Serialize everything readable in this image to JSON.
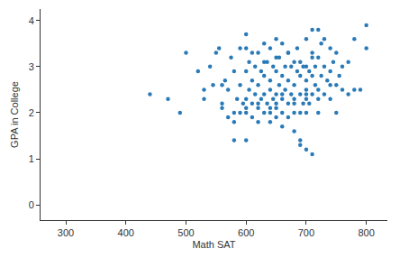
{
  "chart_data": {
    "type": "scatter",
    "x_label": "Math SAT",
    "y_label": "GPA in College",
    "color": "#2a7ab8",
    "marker": "circle",
    "grid": false,
    "xlim": [
      258,
      835
    ],
    "xticks": [
      300,
      400,
      500,
      600,
      700,
      800
    ],
    "ylim": [
      -0.33,
      4.25
    ],
    "yticks": [
      0,
      1,
      2,
      3,
      4
    ],
    "x": [
      440,
      470,
      490,
      500,
      520,
      530,
      530,
      540,
      545,
      550,
      555,
      560,
      560,
      565,
      570,
      570,
      575,
      580,
      580,
      580,
      585,
      590,
      590,
      590,
      595,
      600,
      600,
      600,
      600,
      600,
      605,
      605,
      610,
      610,
      610,
      615,
      615,
      620,
      620,
      620,
      620,
      625,
      625,
      630,
      630,
      630,
      630,
      635,
      635,
      640,
      640,
      640,
      640,
      640,
      645,
      645,
      650,
      650,
      650,
      650,
      650,
      655,
      655,
      660,
      660,
      660,
      660,
      660,
      665,
      665,
      670,
      670,
      670,
      670,
      675,
      675,
      680,
      680,
      680,
      680,
      680,
      685,
      685,
      690,
      690,
      690,
      690,
      690,
      695,
      695,
      700,
      700,
      700,
      700,
      700,
      700,
      705,
      705,
      710,
      710,
      710,
      710,
      710,
      715,
      715,
      720,
      720,
      720,
      720,
      725,
      725,
      730,
      730,
      730,
      735,
      740,
      740,
      740,
      745,
      750,
      750,
      750,
      755,
      760,
      760,
      770,
      770,
      780,
      780,
      790,
      800,
      800,
      560,
      580,
      600,
      620,
      640,
      660,
      680,
      700,
      720,
      740,
      610,
      630,
      650,
      670,
      690,
      710,
      600,
      650,
      700
    ],
    "y": [
      2.4,
      2.3,
      2.0,
      3.3,
      2.9,
      2.5,
      2.3,
      3.0,
      2.6,
      3.3,
      3.4,
      2.6,
      2.1,
      2.7,
      1.9,
      2.5,
      3.2,
      1.4,
      1.8,
      2.9,
      2.3,
      2.0,
      2.6,
      3.4,
      2.2,
      3.7,
      1.4,
      2.0,
      2.9,
      3.4,
      2.5,
      3.1,
      1.9,
      2.2,
      2.7,
      3.0,
      2.4,
      1.8,
      2.1,
      2.6,
      3.3,
      2.9,
      2.3,
      2.0,
      2.4,
      2.8,
      3.5,
      2.2,
      3.1,
      1.8,
      2.0,
      2.5,
      2.7,
      3.4,
      2.3,
      3.0,
      1.9,
      2.1,
      2.4,
      2.9,
      3.6,
      2.6,
      3.2,
      1.7,
      2.0,
      2.3,
      2.8,
      3.5,
      2.5,
      3.0,
      1.9,
      2.2,
      2.7,
      3.3,
      2.4,
      3.0,
      1.6,
      2.0,
      2.3,
      2.6,
      3.1,
      2.9,
      3.4,
      1.4,
      1.3,
      2.0,
      2.4,
      2.8,
      2.2,
      3.0,
      1.2,
      2.0,
      2.4,
      2.7,
      3.0,
      3.6,
      2.2,
      2.9,
      1.1,
      2.4,
      2.8,
      3.3,
      3.8,
      2.6,
      3.0,
      3.8,
      2.0,
      2.5,
      3.2,
      2.8,
      3.5,
      2.4,
      3.0,
      3.6,
      2.7,
      2.3,
      2.9,
      3.4,
      3.1,
      2.0,
      2.6,
      3.3,
      2.8,
      2.5,
      3.0,
      2.4,
      3.1,
      2.5,
      3.6,
      2.5,
      3.9,
      3.4,
      2.2,
      2.0,
      2.3,
      2.2,
      2.1,
      2.4,
      2.2,
      2.5,
      2.3,
      2.6,
      3.3,
      3.1,
      3.2,
      3.3,
      3.1,
      3.2,
      2.1,
      2.2,
      2.3
    ]
  }
}
